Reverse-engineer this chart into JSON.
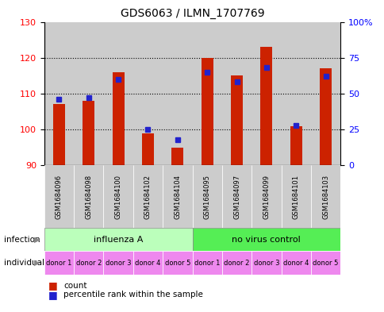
{
  "title": "GDS6063 / ILMN_1707769",
  "samples": [
    "GSM1684096",
    "GSM1684098",
    "GSM1684100",
    "GSM1684102",
    "GSM1684104",
    "GSM1684095",
    "GSM1684097",
    "GSM1684099",
    "GSM1684101",
    "GSM1684103"
  ],
  "count_values": [
    107,
    108,
    116,
    99,
    95,
    120,
    115,
    123,
    101,
    117
  ],
  "percentile_values": [
    46,
    47,
    60,
    25,
    18,
    65,
    58,
    68,
    28,
    62
  ],
  "ylim_left": [
    90,
    130
  ],
  "ylim_right": [
    0,
    100
  ],
  "yticks_left": [
    90,
    100,
    110,
    120,
    130
  ],
  "yticks_right": [
    0,
    25,
    50,
    75,
    100
  ],
  "individual_labels": [
    "donor 1",
    "donor 2",
    "donor 3",
    "donor 4",
    "donor 5",
    "donor 1",
    "donor 2",
    "donor 3",
    "donor 4",
    "donor 5"
  ],
  "influenza_color": "#BBFFBB",
  "novirus_color": "#55EE55",
  "individual_color": "#EE88EE",
  "bar_color": "#CC2200",
  "dot_color": "#2222CC",
  "sample_bg": "#CCCCCC",
  "plot_bg": "#FFFFFF",
  "bar_width": 0.4
}
